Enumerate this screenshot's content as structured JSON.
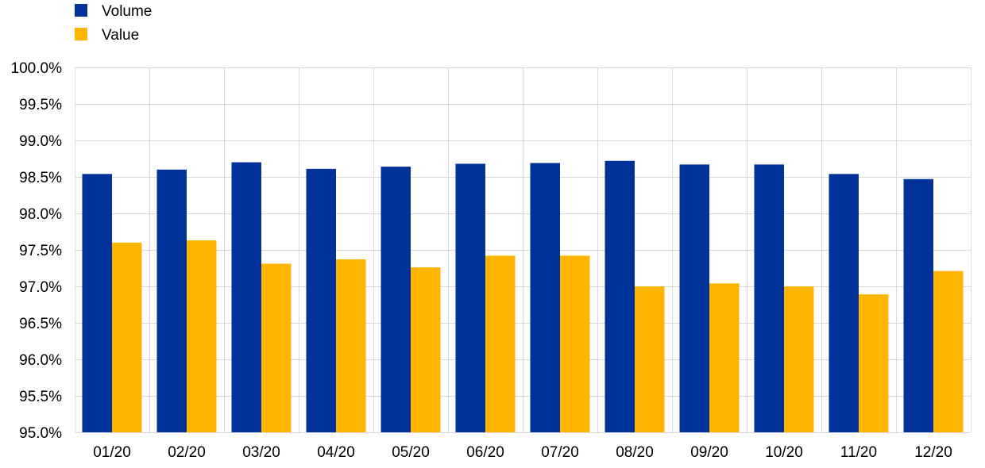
{
  "chart_data": {
    "type": "bar",
    "title": "",
    "xlabel": "",
    "ylabel": "",
    "categories": [
      "01/20",
      "02/20",
      "03/20",
      "04/20",
      "05/20",
      "06/20",
      "07/20",
      "08/20",
      "09/20",
      "10/20",
      "11/20",
      "12/20"
    ],
    "series": [
      {
        "name": "Volume",
        "color": "#003299",
        "values": [
          98.54,
          98.6,
          98.7,
          98.61,
          98.64,
          98.68,
          98.69,
          98.72,
          98.67,
          98.67,
          98.54,
          98.47
        ]
      },
      {
        "name": "Value",
        "color": "#FFB400",
        "values": [
          97.6,
          97.63,
          97.31,
          97.37,
          97.26,
          97.42,
          97.42,
          97.0,
          97.04,
          97.0,
          96.89,
          97.21
        ]
      }
    ],
    "ylim": [
      95.0,
      100.0
    ],
    "ytick_step": 0.5,
    "ytick_labels": [
      "95.0%",
      "95.5%",
      "96.0%",
      "96.5%",
      "97.0%",
      "97.5%",
      "98.0%",
      "98.5%",
      "99.0%",
      "99.5%",
      "100.0%"
    ],
    "grid": true,
    "legend_position": "top-left"
  }
}
